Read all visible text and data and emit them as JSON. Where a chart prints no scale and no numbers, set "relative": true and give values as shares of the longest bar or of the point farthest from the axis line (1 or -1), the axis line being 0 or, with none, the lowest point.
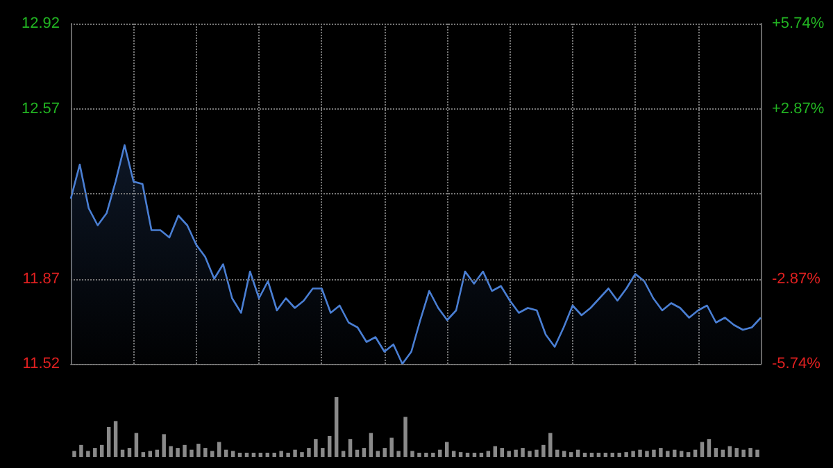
{
  "chart_data": [
    {
      "type": "area",
      "categories": [
        null,
        null,
        null,
        null,
        null,
        null,
        null,
        null,
        null,
        null,
        null,
        null,
        null,
        null,
        null,
        null,
        null,
        null,
        null,
        null,
        null,
        null,
        null,
        null,
        null,
        null,
        null,
        null,
        null,
        null,
        null,
        null,
        null,
        null,
        null,
        null,
        null,
        null,
        null,
        null,
        null,
        null,
        null,
        null,
        null,
        null,
        null,
        null,
        null,
        null,
        null,
        null,
        null,
        null,
        null,
        null,
        null,
        null,
        null,
        null,
        null,
        null,
        null,
        null,
        null,
        null,
        null,
        null,
        null,
        null,
        null,
        null,
        null,
        null,
        null,
        null,
        null,
        null
      ],
      "series": [
        {
          "color": "#4a7fd4",
          "values": [
            12.2,
            12.34,
            12.16,
            12.09,
            12.14,
            12.27,
            12.42,
            12.27,
            12.26,
            12.07,
            12.07,
            12.04,
            12.13,
            12.09,
            12.01,
            11.96,
            11.87,
            11.93,
            11.79,
            11.73,
            11.9,
            11.79,
            11.86,
            11.74,
            11.79,
            11.75,
            11.78,
            11.83,
            11.83,
            11.73,
            11.76,
            11.69,
            11.67,
            11.61,
            11.63,
            11.57,
            11.6,
            11.52,
            11.57,
            11.7,
            11.82,
            11.75,
            11.7,
            11.74,
            11.9,
            11.85,
            11.9,
            11.82,
            11.84,
            11.78,
            11.73,
            11.75,
            11.74,
            11.64,
            11.59,
            11.67,
            11.76,
            11.72,
            11.75,
            11.79,
            11.83,
            11.78,
            11.83,
            11.89,
            11.86,
            11.79,
            11.74,
            11.77,
            11.75,
            11.71,
            11.74,
            11.76,
            11.69,
            11.71,
            11.68,
            11.66,
            11.67,
            11.71
          ]
        }
      ],
      "ylim": [
        11.52,
        12.92
      ],
      "yticks": [
        11.52,
        11.87,
        {
          "value": 12.22,
          "label": null
        },
        12.57,
        12.92
      ],
      "y2lim": [
        -5.74,
        5.74
      ],
      "y2ticks": [
        {
          "value": -5.74,
          "label": "-5.74%"
        },
        {
          "value": -2.87,
          "label": "-2.87%"
        },
        {
          "value": 0,
          "label": null
        },
        {
          "value": 2.87,
          "label": "+2.87%"
        },
        {
          "value": 5.74,
          "label": "+5.74%"
        }
      ],
      "grid": true,
      "marker": "none"
    },
    {
      "type": "bar",
      "relative": true,
      "color": "#8a8a8a",
      "categories": [
        null,
        null,
        null,
        null,
        null,
        null,
        null,
        null,
        null,
        null,
        null,
        null,
        null,
        null,
        null,
        null,
        null,
        null,
        null,
        null,
        null,
        null,
        null,
        null,
        null,
        null,
        null,
        null,
        null,
        null,
        null,
        null,
        null,
        null,
        null,
        null,
        null,
        null,
        null,
        null,
        null,
        null,
        null,
        null,
        null,
        null,
        null,
        null,
        null,
        null,
        null,
        null,
        null,
        null,
        null,
        null,
        null,
        null,
        null,
        null,
        null,
        null,
        null,
        null,
        null,
        null,
        null,
        null,
        null,
        null,
        null,
        null,
        null,
        null,
        null,
        null,
        null,
        null,
        null,
        null,
        null,
        null,
        null,
        null,
        null,
        null,
        null,
        null,
        null,
        null,
        null,
        null,
        null,
        null,
        null,
        null,
        null,
        null,
        null,
        null
      ],
      "values": [
        0.1,
        0.2,
        0.1,
        0.15,
        0.2,
        0.5,
        0.6,
        0.12,
        0.15,
        0.4,
        0.08,
        0.1,
        0.12,
        0.38,
        0.18,
        0.15,
        0.2,
        0.12,
        0.22,
        0.15,
        0.1,
        0.25,
        0.12,
        0.1,
        0.07,
        0.07,
        0.07,
        0.07,
        0.07,
        0.07,
        0.1,
        0.07,
        0.12,
        0.08,
        0.15,
        0.3,
        0.15,
        0.35,
        1.0,
        0.1,
        0.3,
        0.12,
        0.15,
        0.4,
        0.1,
        0.15,
        0.32,
        0.1,
        0.67,
        0.1,
        0.07,
        0.07,
        0.07,
        0.12,
        0.25,
        0.1,
        0.08,
        0.07,
        0.07,
        0.07,
        0.1,
        0.18,
        0.15,
        0.1,
        0.12,
        0.15,
        0.1,
        0.12,
        0.2,
        0.4,
        0.12,
        0.1,
        0.08,
        0.12,
        0.07,
        0.07,
        0.07,
        0.07,
        0.07,
        0.07,
        0.08,
        0.1,
        0.12,
        0.1,
        0.12,
        0.15,
        0.1,
        0.12,
        0.1,
        0.08,
        0.12,
        0.25,
        0.3,
        0.15,
        0.12,
        0.18,
        0.15,
        0.12,
        0.15,
        0.12
      ]
    }
  ]
}
